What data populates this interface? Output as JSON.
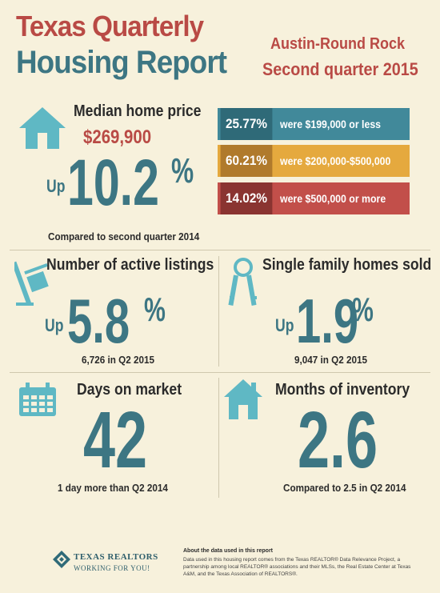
{
  "header": {
    "title_line1": "Texas Quarterly",
    "title_line2": "Housing Report",
    "region": "Austin-Round Rock",
    "period": "Second quarter 2015"
  },
  "median": {
    "label": "Median home price",
    "price": "$269,900",
    "up": "Up",
    "change": "10.2",
    "pct_sign": "%",
    "compare": "Compared to second quarter 2014"
  },
  "price_bands": [
    {
      "percent": "25.77%",
      "text": "were $199,000 or less",
      "dark": "#2f6a78",
      "light": "#41899a"
    },
    {
      "percent": "60.21%",
      "text": "were $200,000-$500,000",
      "dark": "#b07a2c",
      "light": "#e5a93e"
    },
    {
      "percent": "14.02%",
      "text": "were $500,000 or more",
      "dark": "#8a3431",
      "light": "#c24f4a"
    }
  ],
  "listings": {
    "label": "Number of active listings",
    "up": "Up",
    "change": "5.8",
    "pct_sign": "%",
    "detail": "6,726 in Q2 2015"
  },
  "sold": {
    "label": "Single family homes sold",
    "up": "Up",
    "change": "1.9",
    "pct_sign": "%",
    "detail": "9,047 in Q2 2015"
  },
  "days": {
    "label": "Days on market",
    "value": "42",
    "detail": "1 day more than Q2 2014"
  },
  "inventory": {
    "label": "Months of inventory",
    "value": "2.6",
    "detail": "Compared to 2.5 in Q2 2014"
  },
  "footer": {
    "logo_text": "TEXAS REALTORS",
    "logo_tagline": "WORKING FOR YOU!",
    "about_title": "About the data used in this report",
    "about_body": "Data used in this housing report comes from the Texas REALTOR® Data Relevance Project, a partnership among local REALTOR® associations and their MLSs, the Real Estate Center at Texas A&M, and the Texas Association of REALTORS®."
  },
  "colors": {
    "red": "#b94a45",
    "teal": "#3d7683",
    "icon_teal": "#5fb8c4",
    "background": "#f7f1dc"
  }
}
